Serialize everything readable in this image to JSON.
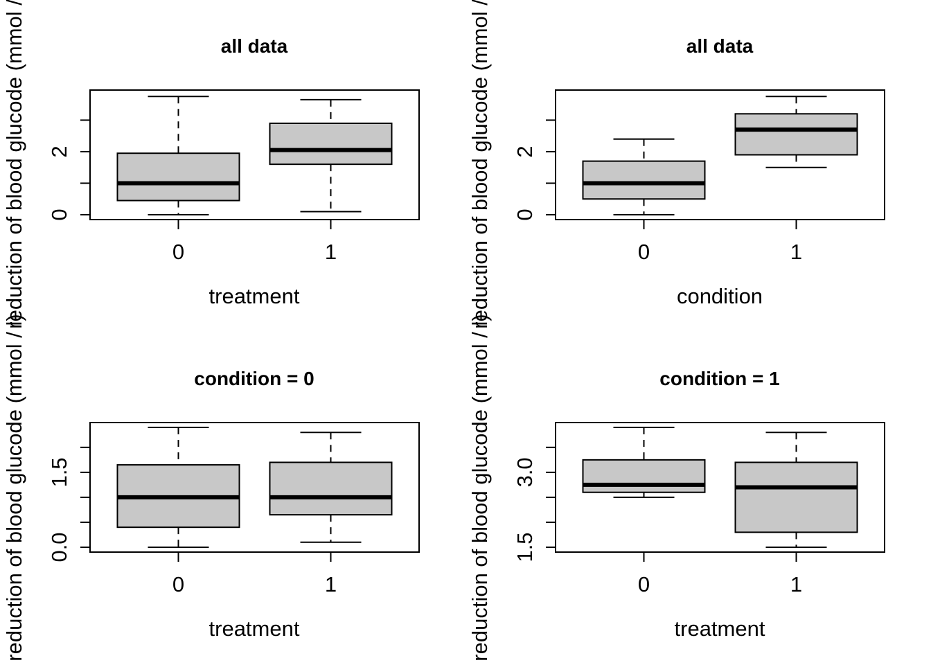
{
  "chart_data": [
    {
      "type": "box",
      "title": "all data",
      "xlabel": "treatment",
      "ylabel": "reduction of blood glucode (mmol / l)",
      "categories": [
        "0",
        "1"
      ],
      "ylim": [
        0,
        3.8
      ],
      "yticks": [
        0,
        1,
        2,
        3
      ],
      "yticklabels": [
        "0",
        "",
        "2",
        ""
      ],
      "boxes": [
        {
          "min": 0.0,
          "q1": 0.45,
          "median": 1.0,
          "q3": 1.95,
          "max": 3.75
        },
        {
          "min": 0.1,
          "q1": 1.6,
          "median": 2.05,
          "q3": 2.9,
          "max": 3.65
        }
      ]
    },
    {
      "type": "box",
      "title": "all data",
      "xlabel": "condition",
      "ylabel": "reduction of blood glucode (mmol / l)",
      "categories": [
        "0",
        "1"
      ],
      "ylim": [
        0,
        3.8
      ],
      "yticks": [
        0,
        1,
        2,
        3
      ],
      "yticklabels": [
        "0",
        "",
        "2",
        ""
      ],
      "boxes": [
        {
          "min": 0.0,
          "q1": 0.5,
          "median": 1.0,
          "q3": 1.7,
          "max": 2.4
        },
        {
          "min": 1.5,
          "q1": 1.9,
          "median": 2.7,
          "q3": 3.2,
          "max": 3.75
        }
      ]
    },
    {
      "type": "box",
      "title": "condition = 0",
      "xlabel": "treatment",
      "ylabel": "reduction of blood glucode (mmol / l)",
      "categories": [
        "0",
        "1"
      ],
      "ylim": [
        0,
        2.4
      ],
      "yticks": [
        0,
        0.5,
        1,
        1.5,
        2
      ],
      "yticklabels": [
        "0.0",
        "",
        "",
        "1.5",
        ""
      ],
      "boxes": [
        {
          "min": 0.0,
          "q1": 0.4,
          "median": 1.0,
          "q3": 1.65,
          "max": 2.4
        },
        {
          "min": 0.1,
          "q1": 0.65,
          "median": 1.0,
          "q3": 1.7,
          "max": 2.3
        }
      ]
    },
    {
      "type": "box",
      "title": "condition = 1",
      "xlabel": "treatment",
      "ylabel": "reduction of blood glucode (mmol / l)",
      "categories": [
        "0",
        "1"
      ],
      "ylim": [
        1.5,
        3.9
      ],
      "yticks": [
        1.5,
        2,
        2.5,
        3,
        3.5
      ],
      "yticklabels": [
        "1.5",
        "",
        "",
        "3.0",
        ""
      ],
      "boxes": [
        {
          "min": 2.5,
          "q1": 2.6,
          "median": 2.75,
          "q3": 3.25,
          "max": 3.9
        },
        {
          "min": 1.5,
          "q1": 1.8,
          "median": 2.7,
          "q3": 3.2,
          "max": 3.8
        }
      ]
    }
  ]
}
